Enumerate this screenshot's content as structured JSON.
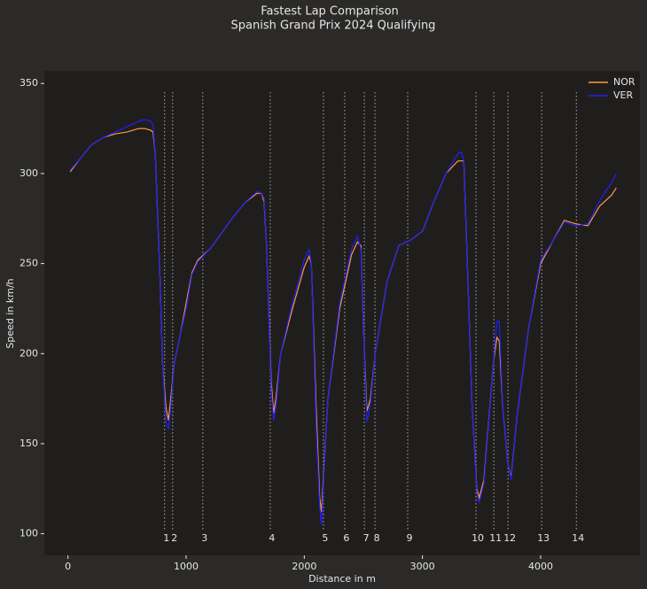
{
  "chart_data": {
    "type": "line",
    "title": "Fastest Lap Comparison",
    "subtitle": "Spanish Grand Prix 2024 Qualifying",
    "x_label": "Distance in m",
    "y_label": "Speed in km/h",
    "x": [
      20,
      100,
      200,
      300,
      400,
      500,
      600,
      650,
      700,
      720,
      740,
      780,
      800,
      830,
      850,
      870,
      900,
      950,
      1000,
      1050,
      1100,
      1200,
      1300,
      1400,
      1500,
      1600,
      1640,
      1660,
      1680,
      1720,
      1740,
      1760,
      1800,
      1900,
      2000,
      2040,
      2060,
      2100,
      2130,
      2145,
      2170,
      2200,
      2300,
      2400,
      2450,
      2480,
      2500,
      2530,
      2560,
      2600,
      2700,
      2800,
      2900,
      3000,
      3100,
      3200,
      3300,
      3330,
      3350,
      3380,
      3420,
      3460,
      3480,
      3520,
      3600,
      3630,
      3650,
      3680,
      3720,
      3750,
      3800,
      3900,
      4000,
      4100,
      4200,
      4300,
      4400,
      4500,
      4600,
      4640
    ],
    "series": [
      {
        "name": "NOR",
        "color": "#ff9a3c",
        "values": [
          301,
          308,
          316,
          320,
          322,
          323,
          325,
          325,
          324,
          323,
          310,
          240,
          195,
          170,
          163,
          175,
          195,
          210,
          228,
          245,
          252,
          258,
          267,
          276,
          284,
          289,
          289,
          284,
          260,
          185,
          167,
          175,
          200,
          225,
          248,
          254,
          250,
          170,
          120,
          112,
          140,
          175,
          225,
          255,
          262,
          260,
          215,
          168,
          175,
          200,
          240,
          260,
          263,
          268,
          285,
          300,
          307,
          307,
          307,
          250,
          170,
          125,
          120,
          130,
          195,
          209,
          207,
          170,
          140,
          131,
          165,
          215,
          250,
          262,
          274,
          272,
          271,
          282,
          288,
          292
        ]
      },
      {
        "name": "VER",
        "color": "#2020ff",
        "values": [
          302,
          308,
          316,
          320,
          323,
          326,
          329,
          330,
          329,
          327,
          310,
          240,
          195,
          162,
          158,
          170,
          195,
          210,
          225,
          244,
          251,
          258,
          267,
          276,
          284,
          290,
          289,
          286,
          260,
          180,
          163,
          170,
          200,
          228,
          252,
          258,
          250,
          160,
          115,
          105,
          138,
          175,
          228,
          258,
          265,
          258,
          215,
          162,
          172,
          200,
          240,
          260,
          263,
          268,
          285,
          300,
          311,
          312,
          307,
          250,
          170,
          123,
          117,
          128,
          195,
          218,
          218,
          170,
          140,
          130,
          165,
          215,
          252,
          262,
          273,
          271,
          272,
          285,
          295,
          300
        ]
      }
    ],
    "xlim": [
      -200,
      4840
    ],
    "ylim": [
      88,
      357
    ],
    "xticks": [
      0,
      1000,
      2000,
      3000,
      4000
    ],
    "yticks": [
      100,
      150,
      200,
      250,
      300,
      350
    ],
    "grid": false,
    "legend": "upper right",
    "corners": {
      "distance": [
        818,
        886,
        1141,
        1712,
        2162,
        2342,
        2508,
        2598,
        2875,
        3453,
        3604,
        3724,
        4009,
        4302
      ],
      "number": [
        1,
        2,
        3,
        4,
        5,
        6,
        7,
        8,
        9,
        10,
        11,
        12,
        13,
        14
      ]
    }
  }
}
